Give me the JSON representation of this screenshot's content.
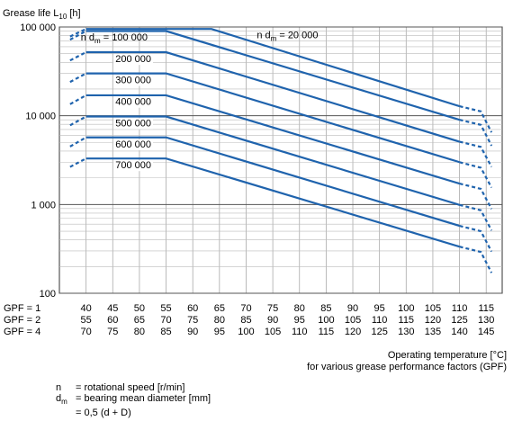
{
  "chart_data": {
    "type": "line",
    "title": "",
    "ylabel": "Grease life L",
    "ylabel_subscript": "10",
    "ylabel_unit": " [h]",
    "xlabel_line1": "Operating temperature [°C]",
    "xlabel_line2": "for various grease performance factors (GPF)",
    "y_scale": "log",
    "ylim": [
      100,
      100000
    ],
    "y_ticks": [
      {
        "value": 100,
        "label": "100"
      },
      {
        "value": 1000,
        "label": "1 000"
      },
      {
        "value": 10000,
        "label": "10 000"
      },
      {
        "value": 100000,
        "label": "100 000"
      }
    ],
    "x_unit": "°C at GPF = 1",
    "xlim": [
      35,
      118
    ],
    "grid": true,
    "gpf_rows": [
      {
        "label": "GPF = 1",
        "ticks": [
          "40",
          "45",
          "50",
          "55",
          "60",
          "65",
          "70",
          "75",
          "80",
          "85",
          "90",
          "95",
          "100",
          "105",
          "110",
          "115"
        ]
      },
      {
        "label": "GPF = 2",
        "ticks": [
          "55",
          "60",
          "65",
          "70",
          "75",
          "80",
          "85",
          "90",
          "95",
          "100",
          "105",
          "110",
          "115",
          "120",
          "125",
          "130"
        ]
      },
      {
        "label": "GPF = 4",
        "ticks": [
          "70",
          "75",
          "80",
          "85",
          "90",
          "95",
          "100",
          "105",
          "110",
          "115",
          "120",
          "125",
          "130",
          "135",
          "140",
          "145"
        ]
      }
    ],
    "series_label_prefix": "n d",
    "series_label_sub": "m",
    "series_label_eq": " = ",
    "series": [
      {
        "name": "20 000",
        "label": "20 000",
        "points": [
          [
            40,
            95000
          ],
          [
            63.5,
            95000
          ],
          [
            110,
            12800
          ],
          [
            114,
            11200
          ],
          [
            116,
            6500
          ]
        ],
        "dashed_start": [
          [
            37,
            78000
          ],
          [
            40,
            95000
          ]
        ]
      },
      {
        "name": "100 000",
        "label": "100 000",
        "points": [
          [
            40,
            90000
          ],
          [
            55,
            90000
          ],
          [
            110,
            9000
          ],
          [
            114,
            7900
          ],
          [
            116,
            4600
          ]
        ],
        "dashed_start": [
          [
            37,
            72000
          ],
          [
            40,
            90000
          ]
        ]
      },
      {
        "name": "200 000",
        "label": "200 000",
        "points": [
          [
            40,
            52000
          ],
          [
            55,
            52000
          ],
          [
            110,
            5100
          ],
          [
            114,
            4450
          ],
          [
            116,
            2650
          ]
        ],
        "dashed_start": [
          [
            37,
            42000
          ],
          [
            40,
            52000
          ]
        ]
      },
      {
        "name": "300 000",
        "label": "300 000",
        "points": [
          [
            40,
            30000
          ],
          [
            55,
            30000
          ],
          [
            110,
            3000
          ],
          [
            114,
            2600
          ],
          [
            116,
            1550
          ]
        ],
        "dashed_start": [
          [
            37,
            24000
          ],
          [
            40,
            30000
          ]
        ]
      },
      {
        "name": "400 000",
        "label": "400 000",
        "points": [
          [
            40,
            17000
          ],
          [
            55,
            17000
          ],
          [
            110,
            1720
          ],
          [
            114,
            1500
          ],
          [
            116,
            890
          ]
        ],
        "dashed_start": [
          [
            37,
            13500
          ],
          [
            40,
            17000
          ]
        ]
      },
      {
        "name": "500 000",
        "label": "500 000",
        "points": [
          [
            40,
            9800
          ],
          [
            55,
            9800
          ],
          [
            110,
            990
          ],
          [
            114,
            860
          ],
          [
            116,
            510
          ]
        ],
        "dashed_start": [
          [
            37,
            7800
          ],
          [
            40,
            9800
          ]
        ]
      },
      {
        "name": "600 000",
        "label": "600 000",
        "points": [
          [
            40,
            5700
          ],
          [
            55,
            5700
          ],
          [
            110,
            575
          ],
          [
            114,
            500
          ],
          [
            116,
            295
          ]
        ],
        "dashed_start": [
          [
            37,
            4500
          ],
          [
            40,
            5700
          ]
        ]
      },
      {
        "name": "700 000",
        "label": "700 000",
        "points": [
          [
            40,
            3300
          ],
          [
            55,
            3300
          ],
          [
            110,
            335
          ],
          [
            114,
            292
          ],
          [
            116,
            170
          ]
        ],
        "dashed_start": [
          [
            37,
            2650
          ],
          [
            40,
            3300
          ]
        ]
      }
    ],
    "series_label_positions": [
      {
        "name": "20 000",
        "x": 72,
        "y": 82000,
        "with_prefix": true
      },
      {
        "name": "100 000",
        "x": 39,
        "y": 77000,
        "with_prefix": true
      },
      {
        "name": "200 000",
        "x": 45.5,
        "y": 44000,
        "with_prefix": false
      },
      {
        "name": "300 000",
        "x": 45.5,
        "y": 25500,
        "with_prefix": false
      },
      {
        "name": "400 000",
        "x": 45.5,
        "y": 14500,
        "with_prefix": false
      },
      {
        "name": "500 000",
        "x": 45.5,
        "y": 8300,
        "with_prefix": false
      },
      {
        "name": "600 000",
        "x": 45.5,
        "y": 4800,
        "with_prefix": false
      },
      {
        "name": "700 000",
        "x": 45.5,
        "y": 2800,
        "with_prefix": false
      }
    ],
    "line_color": "#1f63ad"
  },
  "legend": {
    "n_symbol": "n",
    "n_text": "= rotational speed [r/min]",
    "dm_symbol": "d",
    "dm_sub": "m",
    "dm_text": "= bearing mean diameter [mm]",
    "dm_formula": "= 0,5 (d + D)"
  }
}
